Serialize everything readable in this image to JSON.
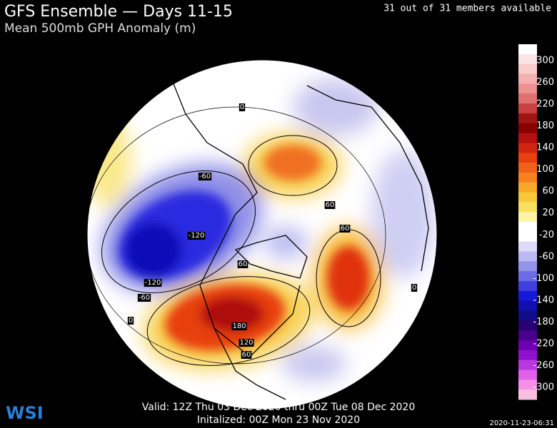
{
  "header": {
    "title": "GFS Ensemble — Days 11-15",
    "subtitle": "Mean 500mb GPH Anomaly (m)",
    "availability": "31 out of 31 members available"
  },
  "colorbar": {
    "labels": [
      "300",
      "260",
      "220",
      "180",
      "140",
      "100",
      "60",
      "20",
      "-20",
      "-60",
      "-100",
      "-140",
      "-180",
      "-220",
      "-260",
      "-300"
    ],
    "colors": [
      "#ffffff",
      "#fde4e4",
      "#f9cccc",
      "#f4b0b0",
      "#ec9090",
      "#e07070",
      "#c84040",
      "#a01414",
      "#8a0000",
      "#b41010",
      "#d22410",
      "#e84010",
      "#f06018",
      "#f88020",
      "#f8a828",
      "#f8c838",
      "#f8e060",
      "#fff4a8",
      "#ffffff",
      "#ffffff",
      "#dcdcf8",
      "#babaf0",
      "#9494e8",
      "#6c6ce4",
      "#4040e0",
      "#1818d8",
      "#1010b0",
      "#100c88",
      "#2a0070",
      "#48008c",
      "#6c00b0",
      "#9010d0",
      "#b838e0",
      "#e060e8",
      "#f490e8",
      "#f8c0dc"
    ]
  },
  "contour_labels": [
    "-60",
    "-120",
    "-120",
    "-60",
    "180",
    "120",
    "60",
    "60",
    "60",
    "60",
    "0",
    "0",
    "0"
  ],
  "footer": {
    "valid": "Valid: 12Z Thu 03 Dec 2020 thru 00Z Tue 08 Dec 2020",
    "initialized": "Initalized: 00Z Mon 23 Nov 2020",
    "timestamp": "2020-11-23-06:31",
    "logo": "WSI"
  }
}
